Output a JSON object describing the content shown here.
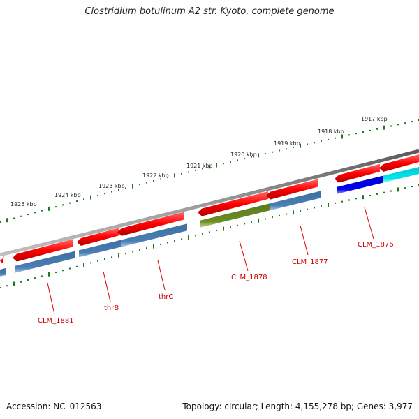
{
  "title": "Clostridium botulinum A2 str. Kyoto, complete genome",
  "footer": {
    "accession": "Accession: NC_012563",
    "summary": "Topology: circular; Length: 4,155,278 bp; Genes: 3,977"
  },
  "ticks": [
    "1917 kbp",
    "1918 kbp",
    "1919 kbp",
    "1920 kbp",
    "1921 kbp",
    "1922 kbp",
    "1923 kbp",
    "1924 kbp",
    "1925 kbp"
  ],
  "gene_labels": [
    "CLM_1876",
    "CLM_1877",
    "CLM_1878",
    "thrC",
    "thrB",
    "CLM_1881"
  ],
  "colors": {
    "backbone": "#808080",
    "gene_forward": "#ff0000",
    "cds_steelblue": "#4a7fb5",
    "cds_olive": "#6b8e23",
    "cds_blue": "#0000ee",
    "cds_cyan": "#00e5ee",
    "tick": "#1e7a1e",
    "label": "#cc0000"
  }
}
